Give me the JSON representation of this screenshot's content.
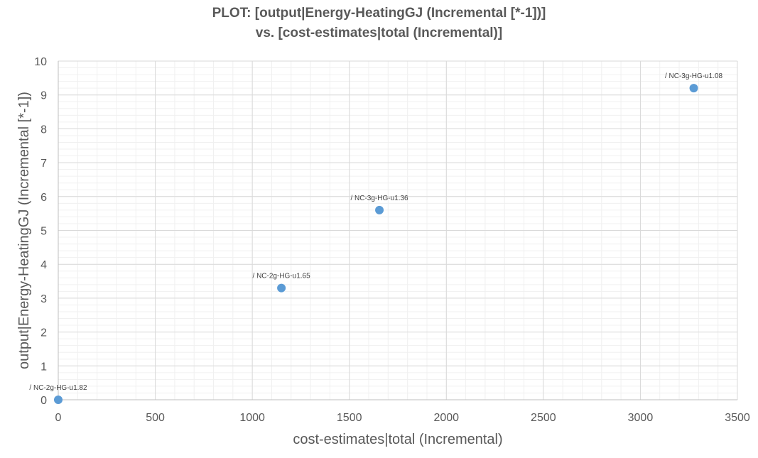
{
  "chart_data": {
    "type": "scatter",
    "title_lines": [
      "PLOT: [output|Energy-HeatingGJ (Incremental [*-1])]",
      "vs. [cost-estimates|total (Incremental)]"
    ],
    "xlabel": "cost-estimates|total (Incremental)",
    "ylabel": "output|Energy-HeatingGJ (Incremental [*-1])",
    "xlim": [
      0,
      3500
    ],
    "ylim": [
      0,
      10
    ],
    "x_ticks": [
      0,
      500,
      1000,
      1500,
      2000,
      2500,
      3000,
      3500
    ],
    "y_ticks": [
      0,
      1,
      2,
      3,
      4,
      5,
      6,
      7,
      8,
      9,
      10
    ],
    "x_minor_step": 100,
    "y_minor_step": 0.2,
    "grid": true,
    "legend": "none",
    "marker_color": "#5b9bd5",
    "points": [
      {
        "x": 0,
        "y": 0,
        "label": "/ NC-2g-HG-u1.82"
      },
      {
        "x": 1150,
        "y": 3.3,
        "label": "/ NC-2g-HG-u1.65"
      },
      {
        "x": 1655,
        "y": 5.6,
        "label": "/ NC-3g-HG-u1.36"
      },
      {
        "x": 3275,
        "y": 9.2,
        "label": "/ NC-3g-HG-u1.08"
      }
    ]
  }
}
